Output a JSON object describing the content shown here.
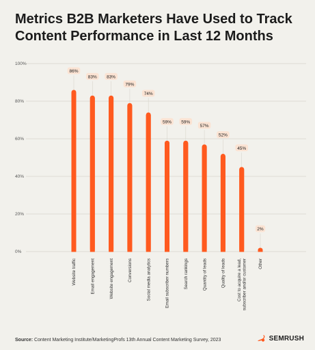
{
  "title": "Metrics B2B Marketers Have Used to Track Content Performance in Last 12 Months",
  "source_label": "Source:",
  "source_text": "Content Marketing Institute/MarketingProfs 13th Annual Content Marketing Survey, 2023",
  "brand": "SEMRUSH",
  "colors": {
    "bar": "#ff5a1f",
    "label_bg": "#fbe3d3",
    "grid": "#d6d4cc",
    "background": "#f2f1ec"
  },
  "chart_data": {
    "type": "bar",
    "title": "Metrics B2B Marketers Have Used to Track Content Performance in Last 12 Months",
    "xlabel": "",
    "ylabel": "",
    "ylim": [
      0,
      100
    ],
    "yticks": [
      "0%",
      "20%",
      "40%",
      "60%",
      "80%",
      "100%"
    ],
    "ytick_values": [
      0,
      20,
      40,
      60,
      80,
      100
    ],
    "grid": true,
    "categories": [
      "Website traffic",
      "Email engagement",
      "Website engagement",
      "Conversions",
      "Social media analytics",
      "Email subscriber numbers",
      "Search rankings",
      "Quantity of leads",
      "Quality of leads",
      "Cost to acquire a lead, subscriber and/or customer",
      "Other"
    ],
    "category_lines": [
      [
        "Website traffic"
      ],
      [
        "Email engagement"
      ],
      [
        "Website engagement"
      ],
      [
        "Conversions"
      ],
      [
        "Social media analytics"
      ],
      [
        "Email subscriber numbers"
      ],
      [
        "Search rankings"
      ],
      [
        "Quantity of leads"
      ],
      [
        "Quality of leads"
      ],
      [
        "Cost to acquire a lead,",
        "subscriber and/or customer"
      ],
      [
        "Other"
      ]
    ],
    "values": [
      86,
      83,
      83,
      79,
      74,
      59,
      59,
      57,
      52,
      45,
      2
    ],
    "data_labels": [
      "86%",
      "83%",
      "83%",
      "79%",
      "74%",
      "59%",
      "59%",
      "57%",
      "52%",
      "45%",
      "2%"
    ]
  }
}
